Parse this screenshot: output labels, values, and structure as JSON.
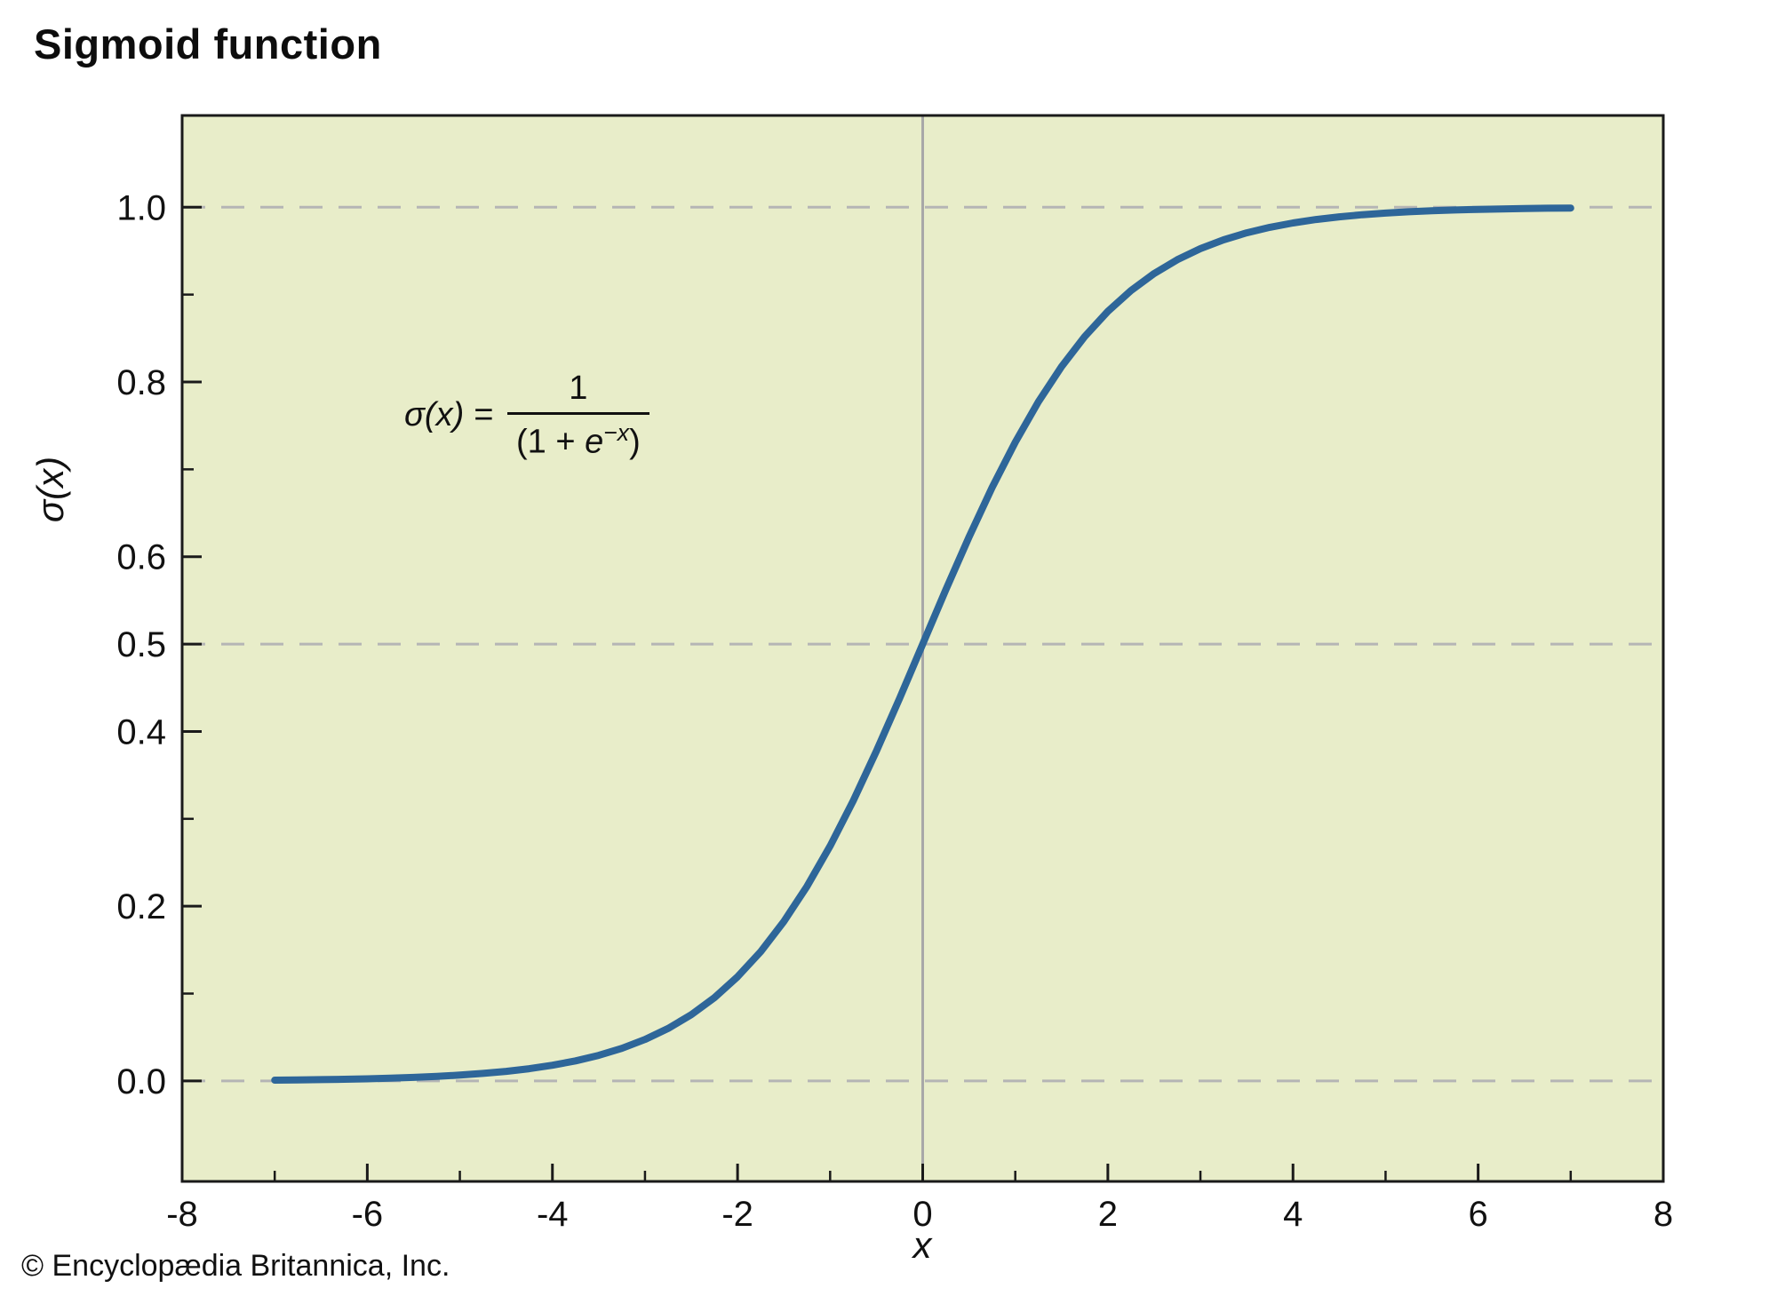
{
  "title": "Sigmoid function",
  "credit": "© Encyclopædia Britannica, Inc.",
  "formula": {
    "lhs": "σ(x) =",
    "numerator": "1",
    "den_open": "(1 + ",
    "den_base": "e",
    "den_exp": "−x",
    "den_close": ")"
  },
  "colors": {
    "plot_bg": "#e8edc9",
    "curve": "#2e6699",
    "gridline": "#b5b5b5",
    "zero_line": "#a8a8a8",
    "axis_border": "#1a1a1a",
    "text": "#111111"
  },
  "chart_data": {
    "type": "line",
    "title": "Sigmoid function",
    "xlabel": "x",
    "ylabel": "σ(x)",
    "xlim": [
      -8,
      8
    ],
    "ylim": [
      -0.115,
      1.105
    ],
    "grid": "dashed horizontal gridlines at y = 0.0, 0.5, 1.0; solid vertical line at x = 0",
    "legend": "none",
    "x_ticks_major": [
      -8,
      -6,
      -4,
      -2,
      0,
      2,
      4,
      6,
      8
    ],
    "x_tick_labels": [
      "-8",
      "-6",
      "-4",
      "-2",
      "0",
      "2",
      "4",
      "6",
      "8"
    ],
    "x_ticks_minor": [
      -7,
      -5,
      -3,
      -1,
      1,
      3,
      5,
      7
    ],
    "y_ticks_major": [
      0.0,
      0.2,
      0.4,
      0.5,
      0.6,
      0.8,
      1.0
    ],
    "y_tick_labels": [
      "0.0",
      "0.2",
      "0.4",
      "0.5",
      "0.6",
      "0.8",
      "1.0"
    ],
    "y_ticks_minor": [
      0.1,
      0.3,
      0.7,
      0.9
    ],
    "gridlines_y_dashed": [
      0.0,
      0.5,
      1.0
    ],
    "vertical_line_x": 0,
    "annotation": "σ(x) = 1 / (1 + e^(−x))",
    "series": [
      {
        "name": "sigmoid",
        "formula": "σ(x) = 1 / (1 + e^(−x))",
        "x_range": [
          -7,
          7
        ],
        "x": [
          -7.0,
          -6.75,
          -6.5,
          -6.25,
          -6.0,
          -5.75,
          -5.5,
          -5.25,
          -5.0,
          -4.75,
          -4.5,
          -4.25,
          -4.0,
          -3.75,
          -3.5,
          -3.25,
          -3.0,
          -2.75,
          -2.5,
          -2.25,
          -2.0,
          -1.75,
          -1.5,
          -1.25,
          -1.0,
          -0.75,
          -0.5,
          -0.25,
          0.0,
          0.25,
          0.5,
          0.75,
          1.0,
          1.25,
          1.5,
          1.75,
          2.0,
          2.25,
          2.5,
          2.75,
          3.0,
          3.25,
          3.5,
          3.75,
          4.0,
          4.25,
          4.5,
          4.75,
          5.0,
          5.25,
          5.5,
          5.75,
          6.0,
          6.25,
          6.5,
          6.75,
          7.0
        ],
        "y": [
          0.000911,
          0.001169,
          0.001501,
          0.001927,
          0.002473,
          0.003173,
          0.00407,
          0.00522,
          0.006693,
          0.008577,
          0.010987,
          0.014064,
          0.017986,
          0.022977,
          0.029312,
          0.037327,
          0.047426,
          0.060087,
          0.075858,
          0.095349,
          0.119203,
          0.148047,
          0.182426,
          0.2227,
          0.268941,
          0.320821,
          0.377541,
          0.437823,
          0.5,
          0.562177,
          0.622459,
          0.679179,
          0.731059,
          0.7773,
          0.817574,
          0.851953,
          0.880797,
          0.904651,
          0.924142,
          0.939913,
          0.952574,
          0.962673,
          0.970688,
          0.977023,
          0.982014,
          0.985936,
          0.989013,
          0.991423,
          0.993307,
          0.99478,
          0.99593,
          0.996827,
          0.997527,
          0.998073,
          0.998499,
          0.998831,
          0.999089
        ]
      }
    ]
  }
}
